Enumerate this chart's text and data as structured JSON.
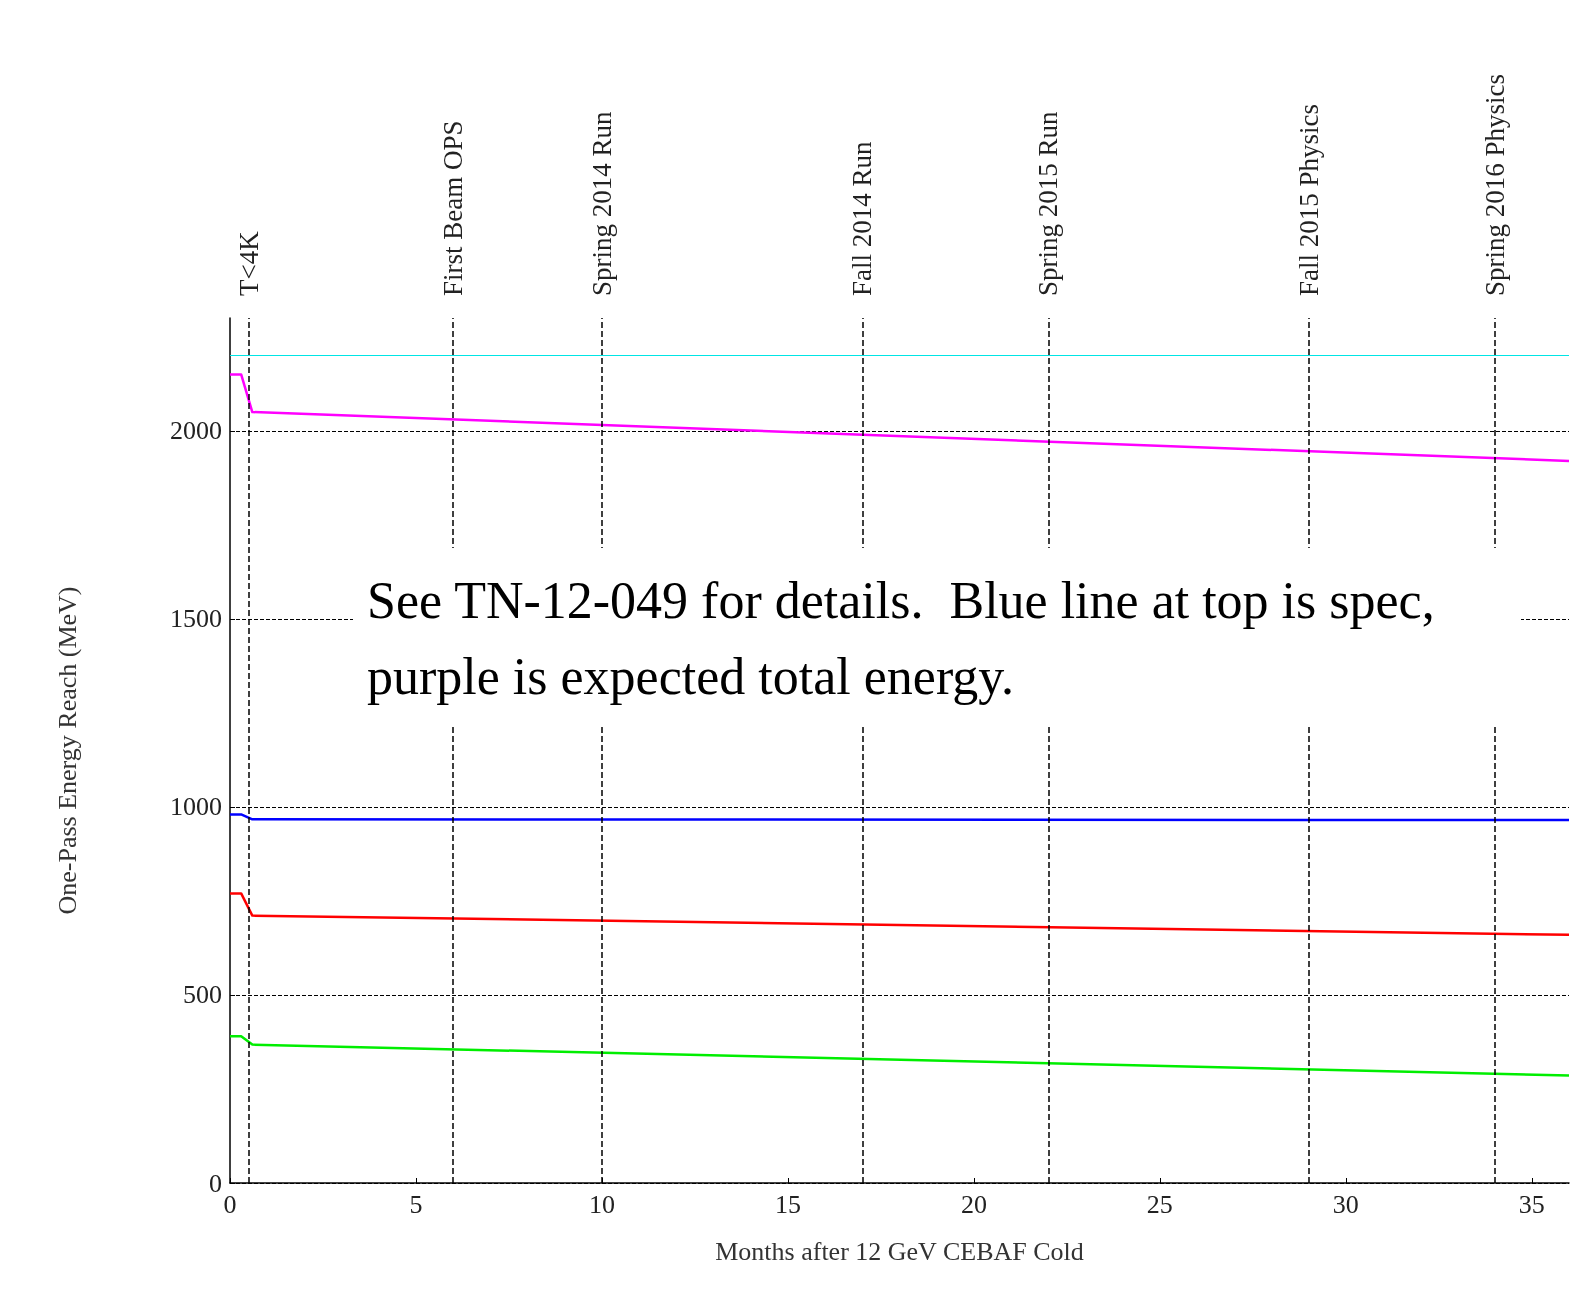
{
  "chart_data": {
    "type": "line",
    "xlabel": "Months after 12 GeV CEBAF Cold",
    "ylabel": "One-Pass Energy Reach (MeV)",
    "xlim": [
      0,
      36
    ],
    "ylim": [
      0,
      2300
    ],
    "xticks": [
      0,
      5,
      10,
      15,
      20,
      25,
      30,
      35
    ],
    "yticks": [
      0,
      500,
      1000,
      1500,
      2000
    ],
    "grid": "y",
    "line_style": "solid",
    "marker": "none",
    "series": [
      {
        "color": "#ff00ff",
        "x": [
          0,
          0.3,
          0.6,
          36
        ],
        "values": [
          2150,
          2150,
          2050,
          1920
        ]
      },
      {
        "color": "#0000ff",
        "x": [
          0,
          0.3,
          0.6,
          36
        ],
        "values": [
          980,
          980,
          967,
          965
        ]
      },
      {
        "color": "#ff0000",
        "x": [
          0,
          0.3,
          0.6,
          36
        ],
        "values": [
          770,
          770,
          711,
          660
        ]
      },
      {
        "color": "#00ee00",
        "x": [
          0,
          0.3,
          0.6,
          36
        ],
        "values": [
          390,
          390,
          368,
          286
        ]
      }
    ],
    "ref_lines": [
      {
        "axis": "y",
        "value": 2200,
        "color": "#00e5e5",
        "line_style": "solid"
      },
      {
        "axis": "x",
        "value": 0.5,
        "label": "T<4K",
        "color": "#000000",
        "line_style": "dashed"
      },
      {
        "axis": "x",
        "value": 6,
        "label": "First Beam OPS",
        "color": "#000000",
        "line_style": "dashed"
      },
      {
        "axis": "x",
        "value": 10,
        "label": "Spring 2014 Run",
        "color": "#000000",
        "line_style": "dashed"
      },
      {
        "axis": "x",
        "value": 17,
        "label": "Fall 2014 Run",
        "color": "#000000",
        "line_style": "dashed"
      },
      {
        "axis": "x",
        "value": 22,
        "label": "Spring 2015 Run",
        "color": "#000000",
        "line_style": "dashed"
      },
      {
        "axis": "x",
        "value": 29,
        "label": "Fall 2015 Physics",
        "color": "#000000",
        "line_style": "dashed"
      },
      {
        "axis": "x",
        "value": 34,
        "label": "Spring 2016 Physics",
        "color": "#000000",
        "line_style": "dashed"
      }
    ],
    "annotations": [
      "See TN-12-049 for details.  Blue line at top is spec, purple is expected total energy."
    ]
  }
}
